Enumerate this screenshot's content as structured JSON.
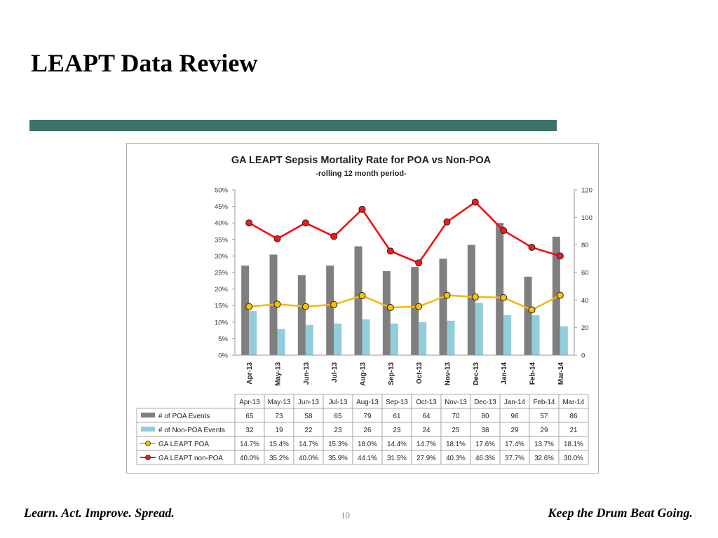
{
  "slide": {
    "title": "LEAPT Data Review",
    "footer_left": "Learn. Act. Improve. Spread.",
    "footer_right": "Keep the Drum Beat Going.",
    "page_number": "10"
  },
  "colors": {
    "title_bar": "#3d7369",
    "poa_events_bar": "#7f7f7f",
    "non_poa_events_bar": "#92cddc",
    "poa_rate_line": "#f5b800",
    "poa_rate_marker": "#ffc000",
    "non_poa_rate_line": "#ff0000",
    "non_poa_rate_marker": "#ee1c1c"
  },
  "chart_data": {
    "type": "bar",
    "title": "GA LEAPT Sepsis Mortality Rate for POA vs Non-POA",
    "subtitle": "-rolling 12 month period-",
    "categories": [
      "Apr-13",
      "May-13",
      "Jun-13",
      "Jul-13",
      "Aug-13",
      "Sep-13",
      "Oct-13",
      "Nov-13",
      "Dec-13",
      "Jan-14",
      "Feb-14",
      "Mar-14"
    ],
    "left_axis": {
      "min": 0,
      "max": 0.5,
      "step": 0.05,
      "format": "percent"
    },
    "right_axis": {
      "min": 0,
      "max": 120,
      "step": 20
    },
    "series": [
      {
        "name": "# of POA Events",
        "type": "bar",
        "axis": "right",
        "values": [
          65,
          73,
          58,
          65,
          79,
          61,
          64,
          70,
          80,
          96,
          57,
          86
        ],
        "labels": [
          "65",
          "73",
          "58",
          "65",
          "79",
          "61",
          "64",
          "70",
          "80",
          "96",
          "57",
          "86"
        ]
      },
      {
        "name": "# of Non-POA Events",
        "type": "bar",
        "axis": "right",
        "values": [
          32,
          19,
          22,
          23,
          26,
          23,
          24,
          25,
          38,
          29,
          29,
          21
        ],
        "labels": [
          "32",
          "19",
          "22",
          "23",
          "26",
          "23",
          "24",
          "25",
          "38",
          "29",
          "29",
          "21"
        ]
      },
      {
        "name": "GA LEAPT POA",
        "type": "line",
        "axis": "left",
        "values": [
          0.147,
          0.154,
          0.147,
          0.153,
          0.18,
          0.144,
          0.147,
          0.181,
          0.176,
          0.174,
          0.137,
          0.181
        ],
        "labels": [
          "14.7%",
          "15.4%",
          "14.7%",
          "15.3%",
          "18.0%",
          "14.4%",
          "14.7%",
          "18.1%",
          "17.6%",
          "17.4%",
          "13.7%",
          "18.1%"
        ]
      },
      {
        "name": "GA LEAPT non-POA",
        "type": "line",
        "axis": "left",
        "values": [
          0.4,
          0.352,
          0.4,
          0.359,
          0.441,
          0.315,
          0.279,
          0.403,
          0.463,
          0.377,
          0.326,
          0.3
        ],
        "labels": [
          "40.0%",
          "35.2%",
          "40.0%",
          "35.9%",
          "44.1%",
          "31.5%",
          "27.9%",
          "40.3%",
          "46.3%",
          "37.7%",
          "32.6%",
          "30.0%"
        ]
      }
    ],
    "grid": false,
    "legend": "data-table"
  }
}
